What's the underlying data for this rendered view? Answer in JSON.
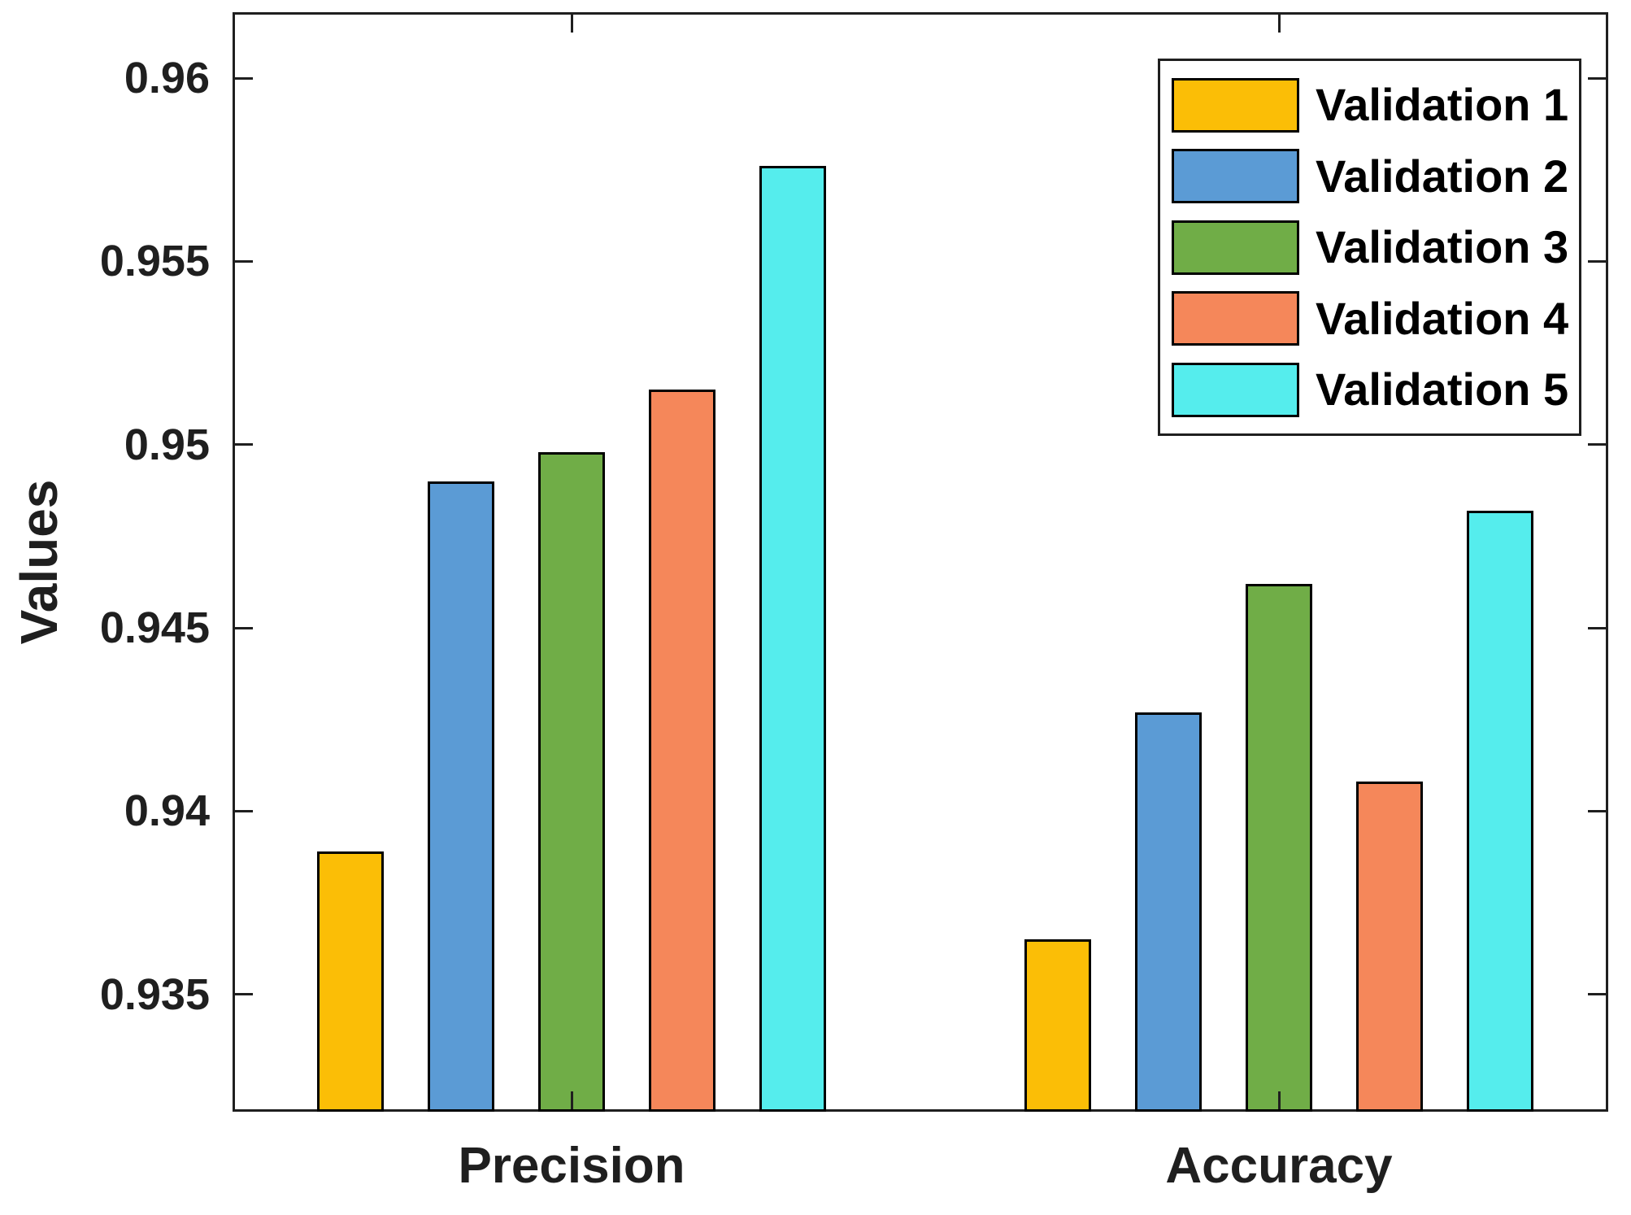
{
  "figure": {
    "background": "#ffffff",
    "spine_color": "#1f1f1f",
    "text_color": "#1f1f1f",
    "bar_edge_color": "#000000"
  },
  "chart_data": {
    "type": "bar",
    "title": "",
    "xlabel": "",
    "ylabel": "Values",
    "categories": [
      "Precision",
      "Accuracy"
    ],
    "series": [
      {
        "name": "Validation 1",
        "color": "#FBBE06",
        "values": [
          0.9389,
          0.9365
        ]
      },
      {
        "name": "Validation 2",
        "color": "#5B9BD5",
        "values": [
          0.949,
          0.9427
        ]
      },
      {
        "name": "Validation 3",
        "color": "#70AD47",
        "values": [
          0.9498,
          0.9462
        ]
      },
      {
        "name": "Validation 4",
        "color": "#F5875A",
        "values": [
          0.9515,
          0.9408
        ]
      },
      {
        "name": "Validation 5",
        "color": "#55EDED",
        "values": [
          0.9576,
          0.9482
        ]
      }
    ],
    "yticks": [
      0.935,
      0.94,
      0.945,
      0.95,
      0.955,
      0.96
    ],
    "ytick_labels": [
      "0.935",
      "0.94",
      "0.945",
      "0.95",
      "0.955",
      "0.96"
    ],
    "ylim": [
      0.9318,
      0.9618
    ],
    "grid": false,
    "legend_position": "upper-right",
    "legend_title": ""
  }
}
